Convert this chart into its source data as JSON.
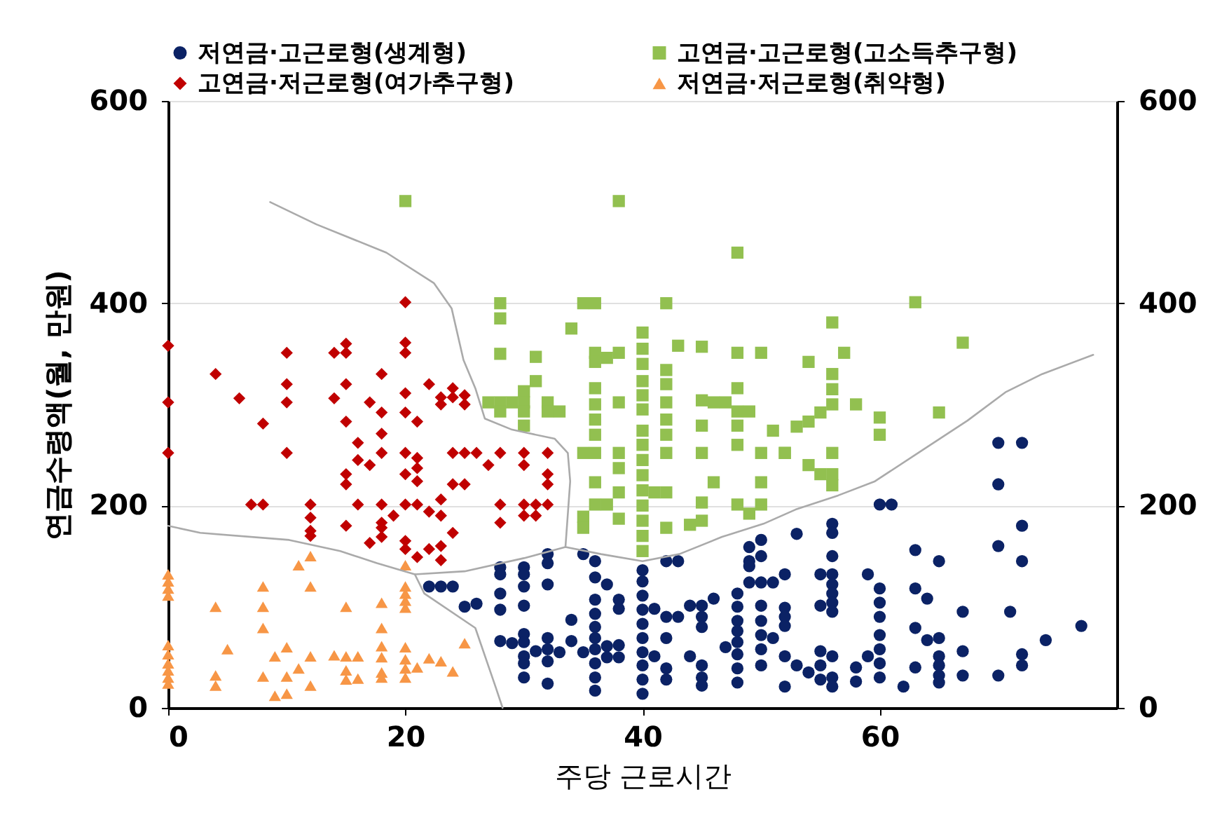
{
  "chart_data": {
    "type": "scatter",
    "xlabel": "주당 근로시간",
    "ylabel": "연금수령액(월, 만원)",
    "xlim": [
      0,
      80
    ],
    "xticks": [
      0,
      20,
      40,
      60
    ],
    "ylim": [
      0,
      600
    ],
    "yticks": [
      0,
      200,
      400,
      600
    ],
    "y2lim": [
      0,
      600
    ],
    "y2ticks": [
      0,
      200,
      400,
      600
    ],
    "grid": "y",
    "legend": "top",
    "series": [
      {
        "name": "저연금·고근로형(생계형)",
        "color": "#0b2265",
        "marker": "circle",
        "x": [
          22,
          23,
          24,
          25,
          26,
          28,
          28,
          28,
          28,
          28,
          29,
          30,
          30,
          30,
          30,
          30,
          30,
          30,
          30,
          30,
          31,
          32,
          32,
          32,
          32,
          32,
          32,
          32,
          33,
          34,
          34,
          35,
          35,
          36,
          36,
          36,
          36,
          36,
          36,
          36,
          36,
          36,
          36,
          37,
          37,
          37,
          38,
          38,
          38,
          38,
          40,
          40,
          40,
          40,
          40,
          40,
          40,
          40,
          40,
          40,
          41,
          41,
          42,
          43,
          42,
          42,
          42,
          42,
          43,
          44,
          45,
          46,
          44,
          45,
          45,
          45,
          45,
          45,
          49,
          49,
          48,
          48,
          48,
          48,
          48,
          48,
          48,
          48,
          47,
          49,
          49,
          50,
          50,
          50,
          50,
          50,
          50,
          50,
          50,
          51,
          51,
          53,
          52,
          52,
          52,
          52,
          52,
          52,
          53,
          54,
          55,
          55,
          55,
          55,
          55,
          56,
          56,
          56,
          56,
          56,
          56,
          56,
          56,
          56,
          56,
          56,
          58,
          58,
          59,
          59,
          60,
          61,
          60,
          60,
          60,
          60,
          60,
          60,
          60,
          62,
          63,
          63,
          63,
          63,
          64,
          64,
          65,
          65,
          65,
          65,
          65,
          65,
          67,
          67,
          67,
          70,
          72,
          70,
          70,
          72,
          72,
          71,
          70,
          72,
          72,
          74,
          77
        ],
        "values": [
          120,
          120,
          120,
          100,
          103,
          139,
          132,
          113,
          97,
          66,
          64,
          139,
          132,
          120,
          101,
          73,
          65,
          51,
          44,
          30,
          56,
          152,
          143,
          122,
          69,
          58,
          46,
          24,
          55,
          87,
          66,
          152,
          55,
          145,
          129,
          107,
          93,
          80,
          69,
          58,
          44,
          30,
          17,
          122,
          61,
          50,
          107,
          98,
          62,
          50,
          136,
          125,
          111,
          97,
          83,
          69,
          55,
          42,
          28,
          14,
          98,
          51,
          145,
          145,
          90,
          69,
          39,
          28,
          90,
          101,
          101,
          108,
          51,
          90,
          80,
          42,
          30,
          22,
          159,
          145,
          113,
          100,
          86,
          76,
          65,
          53,
          39,
          25,
          60,
          140,
          124,
          166,
          150,
          124,
          101,
          86,
          72,
          58,
          42,
          124,
          69,
          172,
          132,
          99,
          90,
          81,
          51,
          21,
          42,
          35,
          56,
          42,
          28,
          101,
          132,
          182,
          173,
          150,
          132,
          122,
          113,
          104,
          95,
          51,
          30,
          21,
          40,
          26,
          132,
          51,
          201,
          201,
          118,
          104,
          90,
          72,
          58,
          44,
          30,
          21,
          156,
          118,
          79,
          40,
          108,
          67,
          145,
          69,
          51,
          42,
          32,
          25,
          95,
          56,
          32,
          262,
          262,
          221,
          160,
          180,
          145,
          95,
          32,
          53,
          42,
          67,
          81
        ]
      },
      {
        "name": "고연금·고근로형(고소득추구형)",
        "color": "#92c050",
        "marker": "square",
        "x": [
          20,
          38,
          48,
          28,
          28,
          35,
          36,
          34,
          42,
          40,
          28,
          31,
          36,
          36,
          37,
          38,
          40,
          40,
          43,
          45,
          48,
          50,
          31,
          30,
          27,
          28,
          29,
          30,
          30,
          30,
          28,
          32,
          32,
          33,
          36,
          36,
          36,
          36,
          38,
          40,
          40,
          40,
          42,
          42,
          42,
          42,
          42,
          45,
          46,
          47,
          48,
          48,
          49,
          45,
          48,
          48,
          51,
          35,
          36,
          38,
          38,
          40,
          40,
          40,
          40,
          40,
          40,
          40,
          40,
          40,
          42,
          45,
          50,
          52,
          36,
          35,
          35,
          36,
          37,
          38,
          38,
          41,
          42,
          42,
          44,
          45,
          45,
          46,
          48,
          49,
          50,
          50,
          63,
          56,
          67,
          54,
          57,
          56,
          56,
          56,
          58,
          55,
          54,
          53,
          60,
          60,
          65,
          52,
          56,
          54,
          55,
          56,
          56
        ],
        "values": [
          501,
          501,
          450,
          400,
          385,
          400,
          400,
          375,
          400,
          371,
          350,
          347,
          351,
          342,
          346,
          351,
          355,
          340,
          358,
          357,
          351,
          351,
          323,
          313,
          302,
          302,
          302,
          302,
          293,
          279,
          293,
          302,
          293,
          293,
          316,
          300,
          285,
          270,
          302,
          323,
          309,
          295,
          334,
          320,
          302,
          285,
          270,
          304,
          302,
          302,
          316,
          293,
          293,
          279,
          279,
          260,
          274,
          252,
          252,
          252,
          237,
          274,
          260,
          245,
          230,
          215,
          200,
          185,
          170,
          155,
          252,
          252,
          252,
          252,
          223,
          189,
          178,
          201,
          201,
          213,
          187,
          213,
          213,
          178,
          181,
          185,
          203,
          223,
          201,
          192,
          223,
          201,
          401,
          381,
          361,
          342,
          351,
          330,
          315,
          300,
          300,
          292,
          283,
          278,
          287,
          270,
          292,
          252,
          252,
          240,
          231,
          231,
          220
        ]
      },
      {
        "name": "고연금·저근로형(여가추구형)",
        "color": "#c00000",
        "marker": "diamond",
        "x": [
          0,
          0,
          0,
          4,
          6,
          8,
          10,
          10,
          10,
          10,
          7,
          8,
          12,
          12,
          12,
          14,
          15,
          15,
          15,
          14,
          15,
          17,
          18,
          18,
          18,
          16,
          16,
          17,
          18,
          15,
          15,
          16,
          18,
          18,
          19,
          20,
          20,
          20,
          20,
          20,
          20,
          20,
          20,
          21,
          21,
          21,
          21,
          21,
          22,
          22,
          23,
          23,
          23,
          24,
          24,
          23,
          24,
          24,
          25,
          25,
          25,
          26,
          27,
          28,
          30,
          30,
          32,
          32,
          32,
          25,
          28,
          28,
          30,
          31,
          32,
          30,
          31,
          15,
          18,
          18,
          17,
          20,
          20,
          21,
          22,
          23,
          23,
          24,
          12
        ],
        "values": [
          358,
          302,
          252,
          330,
          306,
          281,
          351,
          320,
          302,
          252,
          201,
          201,
          201,
          188,
          175,
          351,
          360,
          351,
          320,
          306,
          283,
          302,
          330,
          292,
          271,
          262,
          245,
          240,
          252,
          231,
          221,
          201,
          201,
          183,
          190,
          401,
          361,
          351,
          311,
          292,
          252,
          231,
          201,
          283,
          247,
          237,
          224,
          201,
          320,
          194,
          190,
          307,
          300,
          316,
          307,
          206,
          252,
          221,
          309,
          300,
          252,
          252,
          240,
          252,
          252,
          240,
          252,
          231,
          221,
          221,
          201,
          183,
          201,
          201,
          201,
          190,
          190,
          180,
          178,
          169,
          163,
          165,
          157,
          149,
          157,
          160,
          146,
          173,
          170
        ]
      },
      {
        "name": "저연금·저근로형(취약형)",
        "color": "#f79646",
        "marker": "triangle",
        "x": [
          0,
          0,
          0,
          0,
          0,
          0,
          0,
          0,
          0,
          0,
          4,
          4,
          4,
          5,
          8,
          8,
          8,
          8,
          9,
          9,
          10,
          10,
          10,
          11,
          11,
          12,
          12,
          12,
          12,
          14,
          15,
          15,
          15,
          15,
          16,
          16,
          18,
          18,
          18,
          18,
          18,
          18,
          20,
          20,
          20,
          20,
          20,
          20,
          20,
          20,
          20,
          21,
          22,
          23,
          24,
          25
        ],
        "values": [
          132,
          125,
          118,
          111,
          62,
          53,
          44,
          37,
          30,
          24,
          100,
          32,
          22,
          58,
          120,
          100,
          79,
          31,
          51,
          12,
          60,
          31,
          14,
          39,
          141,
          150,
          120,
          51,
          22,
          52,
          100,
          51,
          37,
          28,
          51,
          29,
          104,
          79,
          61,
          50,
          35,
          30,
          141,
          120,
          113,
          106,
          99,
          60,
          48,
          39,
          30,
          40,
          49,
          46,
          36,
          64
        ]
      },
      {
        "type": "line",
        "color": "#aaaaaa",
        "x": [
          8.6,
          12.5,
          18.4,
          22.4,
          23.9,
          24.9,
          25.9,
          26.7,
          29,
          32.6,
          33.7,
          33.9,
          33.5
        ],
        "values": [
          500,
          478,
          450,
          420,
          395,
          344,
          316,
          286,
          275,
          266,
          252,
          224,
          159
        ]
      },
      {
        "type": "line",
        "color": "#aaaaaa",
        "x": [
          0,
          2.7,
          10.2,
          14.5,
          17.6,
          20.8,
          25,
          30,
          33.5,
          36.5,
          40,
          43.1,
          46.7,
          50.2,
          52.9,
          56.5,
          59.6,
          63.5,
          67.4,
          70.6,
          73.7,
          78
        ],
        "values": [
          180,
          173,
          166,
          155,
          143,
          132,
          135,
          148,
          159,
          152,
          145,
          152,
          169,
          182,
          196,
          210,
          224,
          254,
          284,
          312,
          330,
          349
        ]
      },
      {
        "type": "line",
        "color": "#aaaaaa",
        "x": [
          20.8,
          21.6,
          25.9,
          27.6,
          28.2
        ],
        "values": [
          132,
          113,
          79,
          21,
          0
        ]
      }
    ]
  }
}
